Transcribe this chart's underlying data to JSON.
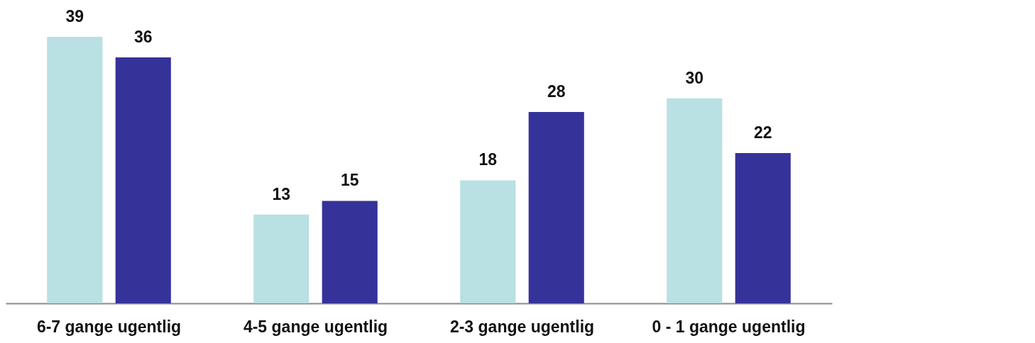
{
  "chart_data": {
    "type": "bar",
    "categories": [
      "6-7 gange ugentlig",
      "4-5 gange ugentlig",
      "2-3 gange ugentlig",
      "0 - 1 gange ugentlig"
    ],
    "series": [
      {
        "color": "#b9e0e3",
        "values": [
          39,
          13,
          18,
          30
        ]
      },
      {
        "color": "#35329a",
        "values": [
          36,
          15,
          28,
          22
        ]
      }
    ],
    "data_labels": true,
    "legend": false,
    "grid": false
  }
}
